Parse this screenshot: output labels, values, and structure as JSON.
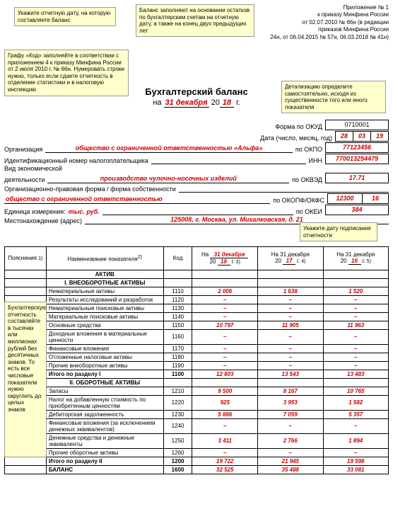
{
  "header": {
    "line1": "Приложение № 1",
    "line2": "к приказу Минфина России",
    "line3": "от 02.07.2010 № 66н (в редакции",
    "line4": "приказов Минфина России",
    "line5": "24н, от 06.04.2015 № 57н, 06.03.2018 № 41н)"
  },
  "callouts": {
    "c1": "Укажите отчетную дату, на которую составляете баланс",
    "c2": "Баланс заполняют на основании остатков по бухгалтерским счетам на отчетную дату, а также на конец двух предыдущих лет",
    "c3": "Графу «Код» заполняйте в соответствии с приложением 4 к приказу Минфина России от 2 июля 2010 г. № 66н. Нумеровать строки нужно, только если сдаете отчетность в отделение статистики и в налоговую инспекцию",
    "c4": "Детализацию определите самостоятельно, исходя из существенности того или иного показателя",
    "c5": "Укажите дату подписания отчетности",
    "c6": "Бухгалтерскую отчетность составляйте в тысячах или миллионах рублей без десятичных знаков. То есть все числовые показатели нужно округлить до целых знаков"
  },
  "title": "Бухгалтерский баланс",
  "dateLine": {
    "prefix": "на",
    "date": "31 декабря",
    "year_prefix": "20",
    "year": "18",
    "suffix": "г."
  },
  "formOKUD": {
    "label": "Форма по ОКУД",
    "value": "0710001"
  },
  "dateFields": {
    "label": "Дата (число, месяц, год)",
    "d": "28",
    "m": "03",
    "y": "19"
  },
  "org": {
    "label": "Организация",
    "value": "общество с ограниченной ответственностью «Альфа»",
    "codelabel": "по ОКПО",
    "code": "77123456"
  },
  "inn": {
    "label": "Идентификационный номер налогоплательщика",
    "codelabel": "ИНН",
    "code": "770013254479"
  },
  "activity": {
    "label1": "Вид экономической",
    "label2": "деятельности",
    "value": "производство чулочно-носочных изделий",
    "codelabel": "по ОКВЭД",
    "code": "17.71"
  },
  "legalForm": {
    "label": "Организационно-правовая форма / форма собственности",
    "value": "общество с ограниченной ответственностью",
    "codelabel": "по ОКОПФ/ОКФС",
    "code1": "12300",
    "code2": "16"
  },
  "unit": {
    "label": "Единица измерения:",
    "value": "тыс. руб.",
    "codelabel": "по ОКЕИ",
    "code": "384"
  },
  "address": {
    "label": "Местонахождение (адрес)",
    "value": "125008, г. Москва, ул. Михалковская, д. 21"
  },
  "tableHead": {
    "poyas": "Пояснения",
    "poyas_sup": "1)",
    "naimen": "Наименование показателя",
    "naimen_sup": "2)",
    "kod": "Код",
    "col3_top": "На",
    "col3_date": "31 декабря",
    "col3_yy_prefix": "20",
    "col3_yy": "18",
    "col3_g": "г.",
    "col3_sup": "3)",
    "col4_top": "На 31 декабря",
    "col4_yy_prefix": "20",
    "col4_yy": "17",
    "col4_g": "г.",
    "col4_sup": "4)",
    "col5_top": "На 31 декабря",
    "col5_yy_prefix": "20",
    "col5_yy": "16",
    "col5_g": "г.",
    "col5_sup": "5)"
  },
  "sections": {
    "aktiv": "АКТИВ",
    "s1": "I. ВНЕОБОРОТНЫЕ АКТИВЫ",
    "s2": "II. ОБОРОТНЫЕ АКТИВЫ"
  },
  "rows": [
    {
      "name": "Нематериальные активы",
      "code": "1110",
      "v1": "2 006",
      "v2": "1 638",
      "v3": "1 520"
    },
    {
      "name": "Результаты исследований и разработок",
      "code": "1120",
      "v1": "–",
      "v2": "–",
      "v3": "–"
    },
    {
      "name": "Нематериальные поисковые активы",
      "code": "1130",
      "v1": "–",
      "v2": "–",
      "v3": "–"
    },
    {
      "name": "Материальные поисковые активы",
      "code": "1140",
      "v1": "–",
      "v2": "–",
      "v3": "–"
    },
    {
      "name": "Основные средства",
      "code": "1150",
      "v1": "10 797",
      "v2": "11 905",
      "v3": "11 963"
    },
    {
      "name": "Доходные вложения в материальные ценности",
      "code": "1160",
      "v1": "–",
      "v2": "–",
      "v3": "–"
    },
    {
      "name": "Финансовые вложения",
      "code": "1170",
      "v1": "–",
      "v2": "–",
      "v3": "–"
    },
    {
      "name": "Отложенные налоговые активы",
      "code": "1180",
      "v1": "–",
      "v2": "–",
      "v3": "–"
    },
    {
      "name": "Прочие внеоборотные активы",
      "code": "1190",
      "v1": "–",
      "v2": "–",
      "v3": "–"
    },
    {
      "name": "Итого по разделу I",
      "code": "1100",
      "v1": "12 803",
      "v2": "13 543",
      "v3": "13 483",
      "bold": true
    }
  ],
  "rows2": [
    {
      "name": "Запасы",
      "code": "1210",
      "v1": "9 500",
      "v2": "8 167",
      "v3": "10 765"
    },
    {
      "name": "Налог на добавленную стоимость по приобретенным ценностям",
      "code": "1220",
      "v1": "925",
      "v2": "3 953",
      "v3": "1 582"
    },
    {
      "name": "Дебиторская задолженность",
      "code": "1230",
      "v1": "5 886",
      "v2": "7 059",
      "v3": "5 357"
    },
    {
      "name": "Финансовые вложения (за исключением денежных эквивалентов)",
      "code": "1240",
      "v1": "–",
      "v2": "–",
      "v3": "–"
    },
    {
      "name": "Денежные средства и денежные эквиваленты",
      "code": "1250",
      "v1": "3 411",
      "v2": "2 766",
      "v3": "1 894"
    },
    {
      "name": "Прочие оборотные активы",
      "code": "1260",
      "v1": "–",
      "v2": "–",
      "v3": "–"
    },
    {
      "name": "Итого по разделу II",
      "code": "1200",
      "v1": "19 722",
      "v2": "21 945",
      "v3": "19 598",
      "bold": true
    },
    {
      "name": "БАЛАНС",
      "code": "1600",
      "v1": "32 525",
      "v2": "35 488",
      "v3": "33 081",
      "bold": true
    }
  ]
}
